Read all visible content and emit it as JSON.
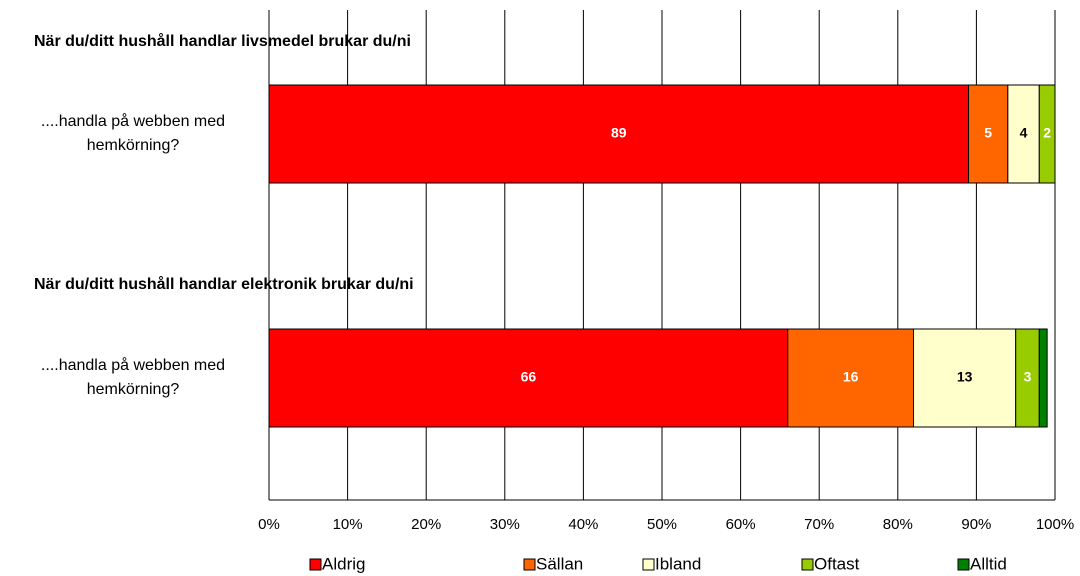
{
  "chart_data": {
    "type": "stacked_bar_horizontal",
    "group_titles": [
      "När du/ditt hushåll handlar livsmedel brukar du/ni",
      "När du/ditt hushåll handlar elektronik brukar du/ni"
    ],
    "categories": [
      "....handla på webben med hemkörning?",
      "....handla på webben med hemkörning?"
    ],
    "series": [
      {
        "name": "Aldrig",
        "color": "#ff0000",
        "label_color": "#ffffff",
        "values": [
          89,
          66
        ]
      },
      {
        "name": "Sällan",
        "color": "#ff6600",
        "label_color": "#ffffff",
        "values": [
          5,
          16
        ]
      },
      {
        "name": "Ibland",
        "color": "#ffffcc",
        "label_color": "#000000",
        "values": [
          4,
          13
        ]
      },
      {
        "name": "Oftast",
        "color": "#99cc00",
        "label_color": "#ffffff",
        "values": [
          2,
          3
        ]
      },
      {
        "name": "Alltid",
        "color": "#008000",
        "label_color": "#ffffff",
        "values": [
          0,
          1
        ],
        "value_labels": [
          null,
          null
        ]
      }
    ],
    "xlim": [
      0,
      100
    ],
    "xticks": [
      {
        "value": 0,
        "label": "0%"
      },
      {
        "value": 10,
        "label": "10%"
      },
      {
        "value": 20,
        "label": "20%"
      },
      {
        "value": 30,
        "label": "30%"
      },
      {
        "value": 40,
        "label": "40%"
      },
      {
        "value": 50,
        "label": "50%"
      },
      {
        "value": 60,
        "label": "60%"
      },
      {
        "value": 70,
        "label": "70%"
      },
      {
        "value": 80,
        "label": "80%"
      },
      {
        "value": 90,
        "label": "90%"
      },
      {
        "value": 100,
        "label": "100%"
      }
    ],
    "grid": true,
    "legend": "bottom"
  }
}
